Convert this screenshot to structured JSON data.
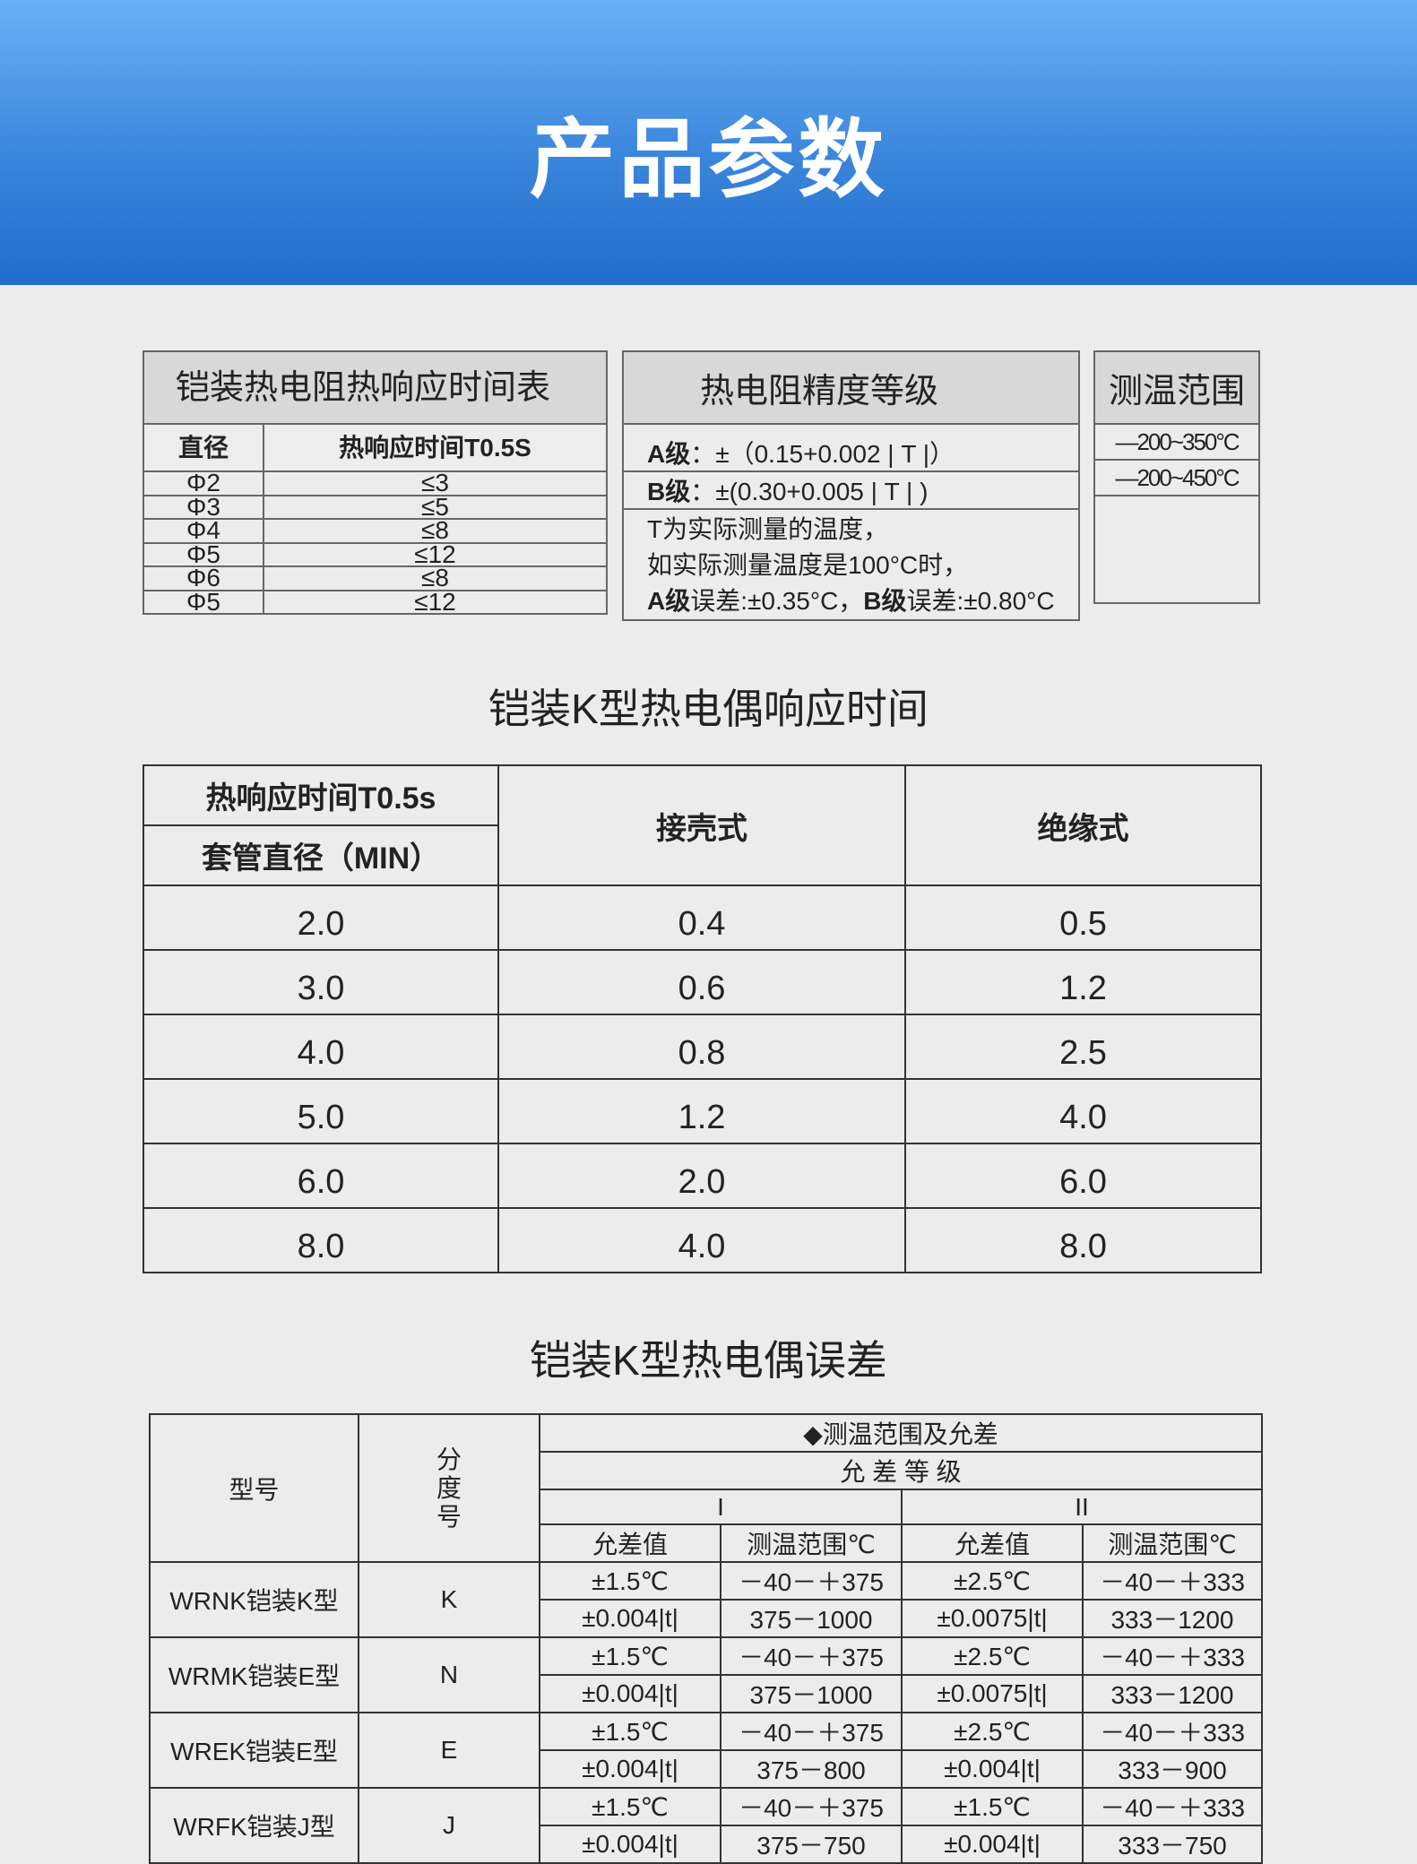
{
  "header": {
    "title": "产品参数"
  },
  "rtd_response": {
    "title": "铠装热电阻热响应时间表",
    "col_diameter": "直径",
    "col_time": "热响应时间T0.5S",
    "rows": [
      [
        "Φ2",
        "≤3"
      ],
      [
        "Φ3",
        "≤5"
      ],
      [
        "Φ4",
        "≤8"
      ],
      [
        "Φ5",
        "≤12"
      ],
      [
        "Φ6",
        "≤8"
      ],
      [
        "Φ5",
        "≤12"
      ]
    ]
  },
  "rtd_accuracy": {
    "title": "热电阻精度等级",
    "a_label": "A级",
    "a_value": "：±（0.15+0.002 | T |）",
    "b_label": "B级",
    "b_value": "：±(0.30+0.005 | T |  )",
    "note1": "T为实际测量的温度，",
    "note2": "如实际测量温度是100°C时，",
    "note3a_label": "A级",
    "note3a": "误差:±0.35°C，",
    "note3b_label": "B级",
    "note3b": "误差:±0.80°C"
  },
  "temp_range": {
    "title": "测温范围",
    "rows": [
      "—200~350°C",
      "—200~450°C"
    ]
  },
  "tc_response": {
    "title": "铠装K型热电偶响应时间",
    "head_top": "热响应时间T0.5s",
    "head_bottom": "套管直径（MIN）",
    "col2": "接壳式",
    "col3": "绝缘式",
    "rows": [
      [
        "2.0",
        "0.4",
        "0.5"
      ],
      [
        "3.0",
        "0.6",
        "1.2"
      ],
      [
        "4.0",
        "0.8",
        "2.5"
      ],
      [
        "5.0",
        "1.2",
        "4.0"
      ],
      [
        "6.0",
        "2.0",
        "6.0"
      ],
      [
        "8.0",
        "4.0",
        "8.0"
      ]
    ]
  },
  "tc_error": {
    "title": "铠装K型热电偶误差",
    "col_model": "型号",
    "col_grad": "分度号",
    "range_header": "◆测温范围及允差",
    "grade_header": "允 差 等 级",
    "grade1": "I",
    "grade2": "II",
    "sub": [
      "允差值",
      "测温范围℃",
      "允差值",
      "测温范围℃"
    ],
    "groups": [
      {
        "model": "WRNK铠装K型",
        "grad": "K",
        "rows": [
          [
            "±1.5℃",
            "－40－＋375",
            "±2.5℃",
            "－40－＋333"
          ],
          [
            "±0.004|t|",
            "375－1000",
            "±0.0075|t|",
            "333－1200"
          ]
        ]
      },
      {
        "model": "WRMK铠装E型",
        "grad": "N",
        "rows": [
          [
            "±1.5℃",
            "－40－＋375",
            "±2.5℃",
            "－40－＋333"
          ],
          [
            "±0.004|t|",
            "375－1000",
            "±0.0075|t|",
            "333－1200"
          ]
        ]
      },
      {
        "model": "WREK铠装E型",
        "grad": "E",
        "rows": [
          [
            "±1.5℃",
            "－40－＋375",
            "±2.5℃",
            "－40－＋333"
          ],
          [
            "±0.004|t|",
            "375－800",
            "±0.004|t|",
            "333－900"
          ]
        ]
      },
      {
        "model": "WRFK铠装J型",
        "grad": "J",
        "rows": [
          [
            "±1.5℃",
            "－40－＋375",
            "±1.5℃",
            "－40－＋333"
          ],
          [
            "±0.004|t|",
            "375－750",
            "±0.004|t|",
            "333－750"
          ]
        ]
      }
    ]
  }
}
